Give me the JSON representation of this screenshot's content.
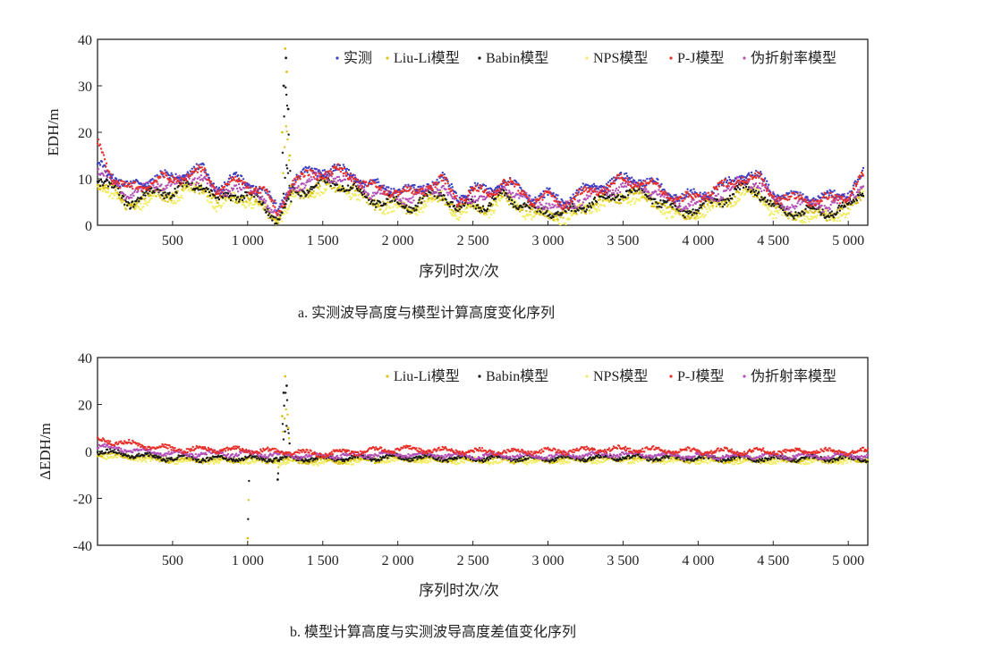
{
  "colors": {
    "measured": "#3b3fc4",
    "liuli": "#d9c21a",
    "babin": "#1a1a1a",
    "nps": "#f2ee6a",
    "pj": "#e8302a",
    "pseudo": "#b34fb8"
  },
  "chart_data": [
    {
      "type": "scatter",
      "title": "a. 实测波导高度与模型计算高度变化序列",
      "xlabel": "序列时次/次",
      "ylabel": "EDH/m",
      "xlim": [
        0,
        5130
      ],
      "ylim": [
        0,
        40
      ],
      "xticks": [
        500,
        1000,
        1500,
        2000,
        2500,
        3000,
        3500,
        4000,
        4500,
        5000
      ],
      "xtick_labels": [
        "500",
        "1 000",
        "1 500",
        "2 000",
        "2 500",
        "3 000",
        "3 500",
        "4 000",
        "4 500",
        "5 000"
      ],
      "yticks": [
        0,
        10,
        20,
        30,
        40
      ],
      "ytick_labels": [
        "0",
        "10",
        "20",
        "30",
        "40"
      ],
      "legend_position": "top-right",
      "x_step": 100,
      "series": [
        {
          "name": "实测",
          "key": "measured",
          "values": [
            13,
            11,
            8,
            9,
            10.5,
            10,
            11.5,
            12,
            8,
            10,
            9,
            8,
            3,
            10,
            11,
            12,
            12,
            11,
            9,
            8,
            8,
            7,
            9,
            10,
            6,
            8,
            7,
            10,
            8,
            6,
            6.5,
            5,
            7,
            8,
            9,
            10,
            10,
            9,
            7,
            6,
            6.5,
            8,
            9,
            11,
            10.5,
            7,
            6,
            6,
            6,
            6,
            7,
            11
          ]
        },
        {
          "name": "Liu-Li模型",
          "key": "liuli",
          "values": [
            9.5,
            7.5,
            4.5,
            5.5,
            7,
            6.5,
            8,
            8.5,
            4.5,
            6.5,
            5.5,
            4.5,
            1,
            6.5,
            7.5,
            8.5,
            8.5,
            7.5,
            5.5,
            4.5,
            4.5,
            3.5,
            5.5,
            6.5,
            2.5,
            4.5,
            3.5,
            6.5,
            4.5,
            2.5,
            3,
            1.5,
            3.5,
            4.5,
            5.5,
            6.5,
            6.5,
            5.5,
            3.5,
            2.5,
            3,
            4.5,
            5.5,
            7.5,
            7,
            3.5,
            2.5,
            2.5,
            2.5,
            2.5,
            3.5,
            7.5
          ]
        },
        {
          "name": "Babin模型",
          "key": "babin",
          "values": [
            10,
            8,
            5,
            6,
            7.5,
            7,
            8.5,
            9,
            5,
            7,
            6,
            5,
            1,
            7,
            8,
            9,
            9,
            8,
            6,
            5,
            5,
            4,
            6,
            7,
            3,
            5,
            4,
            7,
            5,
            3,
            3.5,
            2,
            4,
            5,
            6,
            7,
            7,
            6,
            4,
            3,
            3.5,
            5,
            6,
            8,
            7.5,
            4,
            3,
            3,
            3,
            3,
            4,
            8
          ]
        },
        {
          "name": "NPS模型",
          "key": "nps",
          "values": [
            9,
            7,
            4,
            5,
            6.5,
            6,
            7.5,
            8,
            4,
            6,
            5,
            4,
            1,
            6,
            7,
            8,
            8,
            7,
            5,
            4,
            4,
            3,
            5,
            6,
            2,
            4,
            3,
            6,
            4,
            2,
            2.5,
            1,
            3,
            4,
            5,
            6,
            6,
            5,
            3,
            2,
            2.5,
            4,
            5,
            7,
            6.5,
            3,
            2,
            2,
            2,
            2,
            3,
            7
          ]
        },
        {
          "name": "P-J模型",
          "key": "pj",
          "values": [
            17.5,
            10.5,
            7.5,
            8.5,
            10,
            9.5,
            11,
            11.5,
            7.5,
            9.5,
            8.5,
            7.5,
            2.5,
            9.5,
            10.5,
            11.5,
            11.5,
            10.5,
            8.5,
            7.5,
            7.5,
            6.5,
            8.5,
            9.5,
            5.5,
            7.5,
            6.5,
            9.5,
            7.5,
            5.5,
            6,
            4.5,
            6.5,
            7.5,
            8.5,
            9.5,
            9.5,
            8.5,
            6.5,
            5.5,
            6,
            7.5,
            8.5,
            10.5,
            10,
            6.5,
            5.5,
            5.5,
            5.5,
            5.5,
            6.5,
            10.5
          ]
        },
        {
          "name": "伪折射率模型",
          "key": "pseudo",
          "values": [
            11.5,
            9.5,
            6.5,
            7.5,
            9,
            8.5,
            10,
            10.5,
            6.5,
            8.5,
            7.5,
            6.5,
            1.5,
            8.5,
            9.5,
            10.5,
            10.5,
            9.5,
            7.5,
            6.5,
            6.5,
            5.5,
            7.5,
            8.5,
            4.5,
            6.5,
            5.5,
            8.5,
            6.5,
            4.5,
            5,
            3.5,
            5.5,
            6.5,
            7.5,
            8.5,
            8.5,
            7.5,
            5.5,
            4.5,
            5,
            6.5,
            7.5,
            9.5,
            9,
            5.5,
            4.5,
            4.5,
            4.5,
            4.5,
            5.5,
            9.5
          ]
        }
      ],
      "outliers": {
        "x": [
          1230,
          1240,
          1250,
          1255,
          1260,
          1270,
          1280
        ],
        "y": [
          20,
          30,
          38,
          36,
          33,
          25,
          15
        ]
      }
    },
    {
      "type": "scatter",
      "title": "b. 模型计算高度与实测波导高度差值变化序列",
      "xlabel": "序列时次/次",
      "ylabel": "ΔEDH/m",
      "xlim": [
        0,
        5130
      ],
      "ylim": [
        -40,
        40
      ],
      "xticks": [
        500,
        1000,
        1500,
        2000,
        2500,
        3000,
        3500,
        4000,
        4500,
        5000
      ],
      "xtick_labels": [
        "500",
        "1 000",
        "1 500",
        "2 000",
        "2 500",
        "3 000",
        "3 500",
        "4 000",
        "4 500",
        "5 000"
      ],
      "yticks": [
        -40,
        -20,
        0,
        20,
        40
      ],
      "ytick_labels": [
        "-40",
        "-20",
        "0",
        "20",
        "40"
      ],
      "legend_position": "top-right",
      "x": [
        0,
        500,
        1000,
        1500,
        2000,
        2500,
        3000,
        3500,
        4000,
        4500,
        5000,
        5130
      ],
      "series": [
        {
          "name": "Liu-Li模型",
          "key": "liuli",
          "values": [
            -1,
            -3.5,
            -3.5,
            -4,
            -3,
            -3.5,
            -3.5,
            -3,
            -3.5,
            -3.5,
            -3.5,
            -3.5
          ]
        },
        {
          "name": "Babin模型",
          "key": "babin",
          "values": [
            0,
            -3,
            -3,
            -3,
            -2.5,
            -3,
            -3,
            -2.5,
            -3,
            -3,
            -3,
            -3
          ]
        },
        {
          "name": "NPS模型",
          "key": "nps",
          "values": [
            -1.5,
            -4,
            -4,
            -4.5,
            -3.5,
            -4,
            -4,
            -3.5,
            -4,
            -4,
            -4,
            -4
          ]
        },
        {
          "name": "P-J模型",
          "key": "pj",
          "values": [
            5,
            1,
            0.5,
            -1,
            1,
            0,
            0,
            1,
            0,
            0,
            0,
            0
          ]
        },
        {
          "name": "伪折射率模型",
          "key": "pseudo",
          "values": [
            2,
            -1,
            -1,
            -2,
            -1,
            -2,
            -2,
            -1,
            -2,
            -2,
            -2,
            -2
          ]
        }
      ],
      "outliers": {
        "x": [
          1000,
          1200,
          1230,
          1240,
          1250,
          1260,
          1270
        ],
        "y": [
          -37,
          -12,
          15,
          25,
          32,
          28,
          10
        ]
      }
    }
  ]
}
